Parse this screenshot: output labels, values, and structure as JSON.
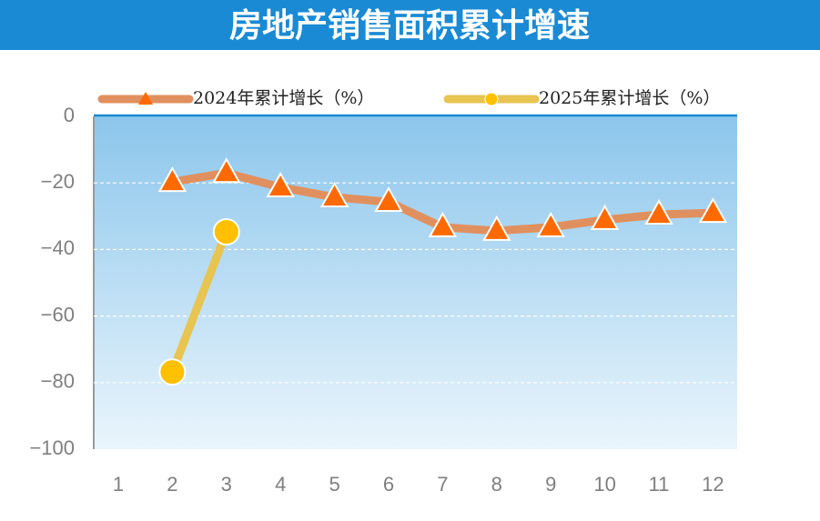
{
  "chart_data": {
    "type": "line",
    "title": "房地产销售面积累计增速",
    "categories": [
      "1",
      "2",
      "3",
      "4",
      "5",
      "6",
      "7",
      "8",
      "9",
      "10",
      "11",
      "12"
    ],
    "series": [
      {
        "name": "2024年累计增长（%）",
        "color": "#e0905e",
        "marker_color": "#ff6a00",
        "marker": "triangle",
        "values": [
          null,
          -19.7,
          -17.0,
          -21.3,
          -24.3,
          -25.7,
          -33.3,
          -34.4,
          -33.3,
          -31.1,
          -29.5,
          -29.0
        ]
      },
      {
        "name": "2025年累计增长（%）",
        "color": "#e8c450",
        "marker_color": "#ffc000",
        "marker": "circle",
        "values": [
          null,
          -76.8,
          -34.7,
          null,
          null,
          null,
          null,
          null,
          null,
          null,
          null,
          null
        ]
      }
    ],
    "ylim": [
      -100,
      0
    ],
    "yticks": [
      0,
      {
        "value": -20,
        "label": "−20"
      },
      {
        "value": -40,
        "label": "−40"
      },
      {
        "value": -60,
        "label": "−60"
      },
      {
        "value": -80,
        "label": "−80"
      },
      {
        "value": -100,
        "label": "−100"
      }
    ],
    "grid": true,
    "legend": "top"
  }
}
